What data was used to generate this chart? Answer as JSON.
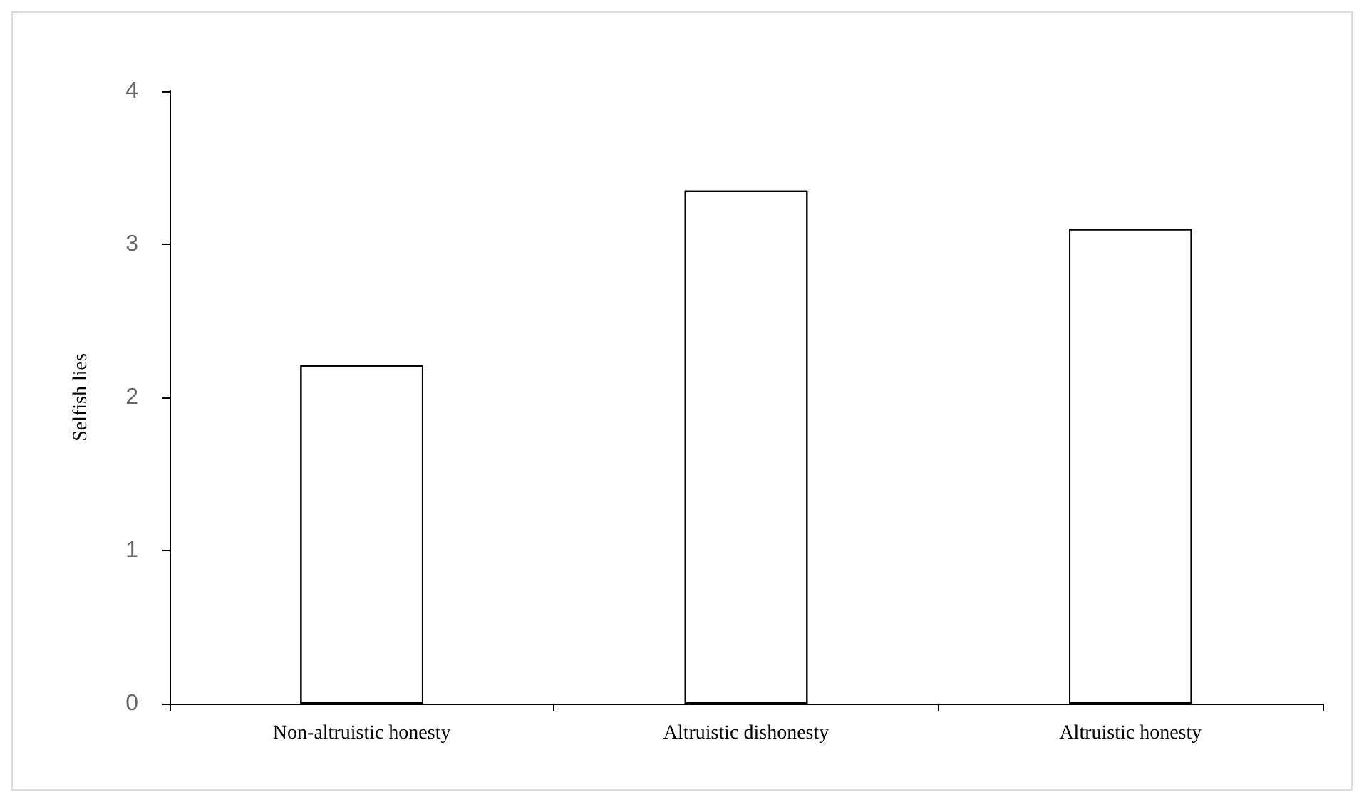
{
  "chart_data": {
    "type": "bar",
    "ylabel": "Selfish lies",
    "categories": [
      "Non-altruistic honesty",
      "Altruistic dishonesty",
      "Altruistic honesty"
    ],
    "values": [
      2.21,
      3.35,
      3.1
    ],
    "color": "#ffffff",
    "ylim": [
      0,
      4
    ],
    "yticks": [
      0,
      1,
      2,
      3,
      4
    ],
    "grid": false
  }
}
